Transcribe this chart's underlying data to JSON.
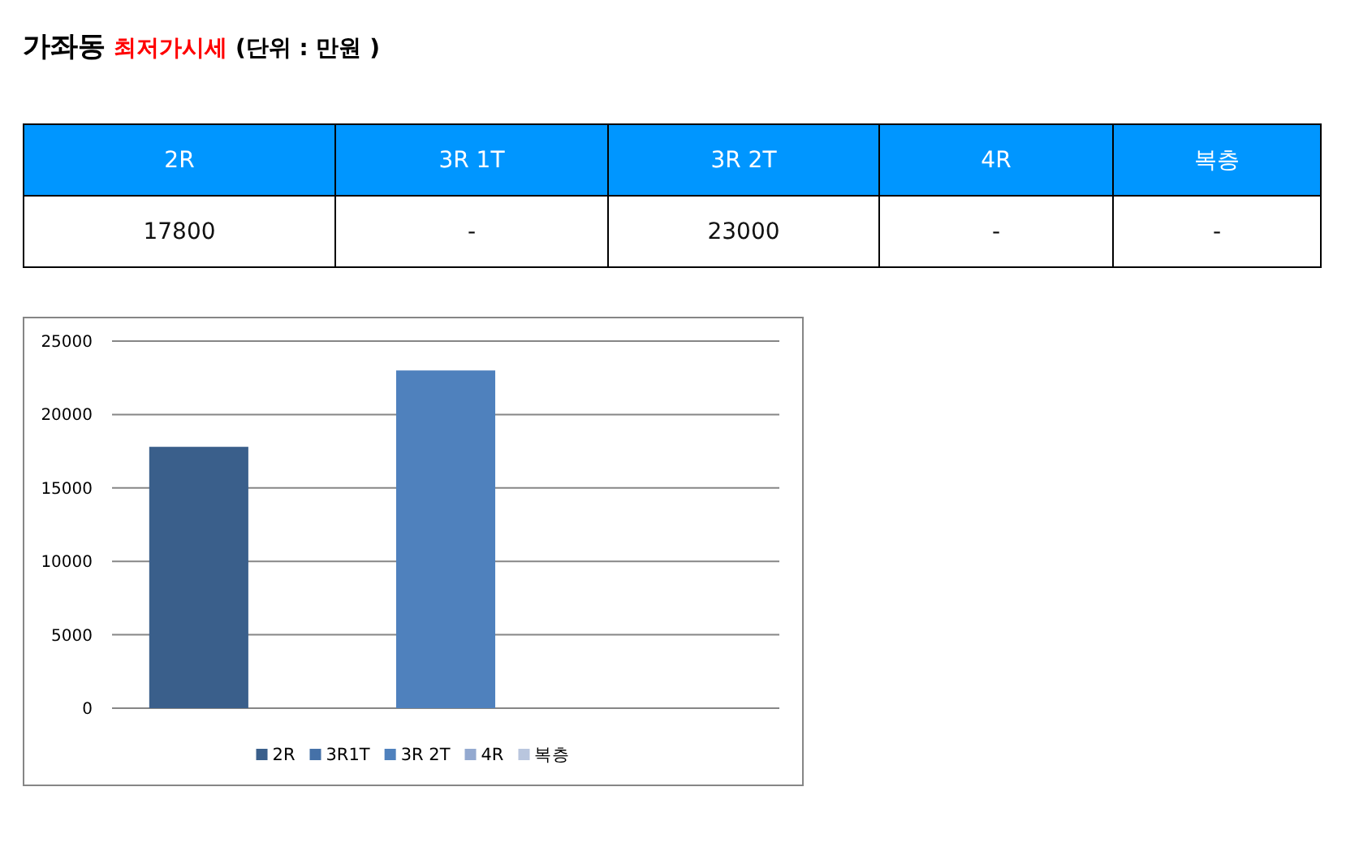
{
  "chart_data": [
    {
      "type": "other",
      "title": "가좌동",
      "subtitle": "최저가시세",
      "annotations": [
        "(단위 : 만원 )"
      ],
      "categories": [
        "2R",
        "3R 1T",
        "3R 2T",
        "4R",
        "복층"
      ],
      "value_labels": [
        "17800",
        "-",
        "23000",
        "-",
        "-"
      ]
    },
    {
      "type": "bar",
      "categories": [
        null
      ],
      "series": [
        {
          "name": "2R",
          "color": "#3a5f8b",
          "values": [
            17800
          ]
        },
        {
          "name": "3R1T",
          "color": "#4571a8",
          "values": [
            null
          ]
        },
        {
          "name": "3R 2T",
          "color": "#4f81bd",
          "values": [
            23000
          ]
        },
        {
          "name": "4R",
          "color": "#93a9d0",
          "values": [
            null
          ]
        },
        {
          "name": "복층",
          "color": "#b9c6de",
          "values": [
            null
          ]
        }
      ],
      "ylim": [
        0,
        25000
      ],
      "yticks": [
        0,
        5000,
        10000,
        15000,
        20000,
        25000
      ],
      "grid": "y",
      "legend": "bottom"
    }
  ]
}
